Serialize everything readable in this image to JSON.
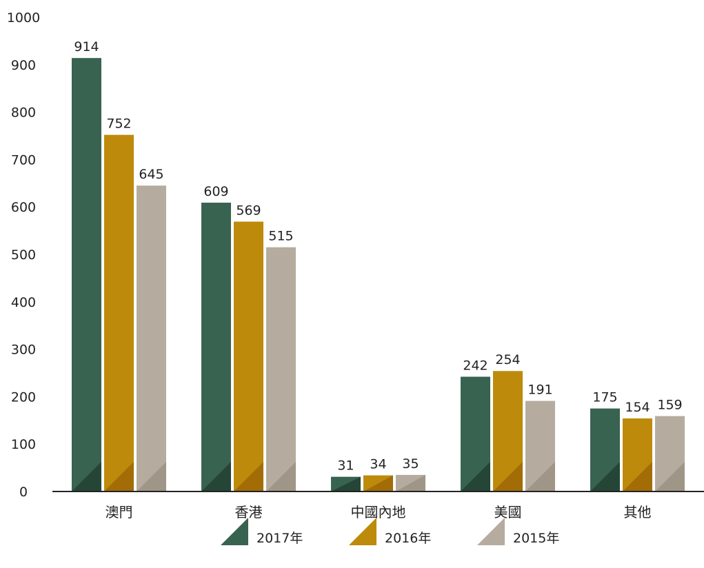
{
  "chart_data": {
    "type": "bar",
    "categories": [
      "澳門",
      "香港",
      "中國內地",
      "美國",
      "其他"
    ],
    "series": [
      {
        "name": "2017年",
        "values": [
          914,
          609,
          31,
          242,
          175
        ],
        "color": "#386350",
        "shade": "#254537"
      },
      {
        "name": "2016年",
        "values": [
          752,
          569,
          34,
          254,
          154
        ],
        "color": "#BD8A0B",
        "shade": "#A26D07"
      },
      {
        "name": "2015年",
        "values": [
          645,
          515,
          35,
          191,
          159
        ],
        "color": "#B5AC9F",
        "shade": "#9F9687"
      }
    ],
    "yticks": [
      0,
      100,
      200,
      300,
      400,
      500,
      600,
      700,
      800,
      900,
      1000
    ],
    "ylim": [
      0,
      1000
    ],
    "title": "",
    "xlabel": "",
    "ylabel": "",
    "grid": false,
    "legend": "bottom-center",
    "data_labels": true
  }
}
